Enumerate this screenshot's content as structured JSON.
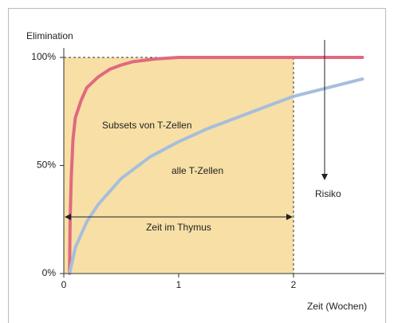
{
  "chart_data": {
    "type": "line",
    "y_label": "Elimination",
    "x_label": "Zeit (Wochen)",
    "xlim": [
      0,
      2.65
    ],
    "ylim": [
      0,
      100
    ],
    "xticks": [
      0,
      1,
      2
    ],
    "yticks": [
      {
        "value": 0,
        "label": "0%"
      },
      {
        "value": 50,
        "label": "50%"
      },
      {
        "value": 100,
        "label": "100%"
      }
    ],
    "series": [
      {
        "name": "Subsets von T-Zellen",
        "color": "#e0697f",
        "x": [
          0.05,
          0.055,
          0.065,
          0.08,
          0.1,
          0.15,
          0.2,
          0.3,
          0.4,
          0.5,
          0.6,
          0.8,
          1,
          1.5,
          2,
          2.6
        ],
        "values": [
          0,
          25,
          45,
          62,
          72,
          80,
          86,
          91,
          94.5,
          96.5,
          98,
          99.3,
          100,
          100,
          100,
          100
        ]
      },
      {
        "name": "alle T-Zellen",
        "color": "#a6bedc",
        "x": [
          0.05,
          0.1,
          0.2,
          0.3,
          0.5,
          0.75,
          1,
          1.25,
          1.5,
          1.75,
          2,
          2.3,
          2.6
        ],
        "values": [
          0,
          12,
          24,
          32,
          44,
          54,
          61,
          67,
          72,
          77,
          82,
          86,
          90
        ]
      }
    ],
    "annotations": [
      "Zeit im Thymus",
      "Risiko"
    ]
  }
}
